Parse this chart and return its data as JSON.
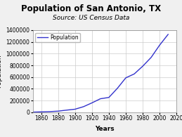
{
  "title": "Population of San Antonio, TX",
  "subtitle": "Source: US Census Data",
  "xlabel": "Years",
  "ylabel": "Population",
  "line_color": "#3333cc",
  "line_width": 1.0,
  "legend_label": "Population",
  "xlim": [
    1850,
    2020
  ],
  "ylim": [
    0,
    1400000
  ],
  "xticks": [
    1860,
    1880,
    1900,
    1920,
    1940,
    1960,
    1980,
    2000,
    2020
  ],
  "yticks": [
    0,
    200000,
    400000,
    600000,
    800000,
    1000000,
    1200000,
    1400000
  ],
  "data": {
    "years": [
      1850,
      1860,
      1870,
      1880,
      1890,
      1900,
      1910,
      1920,
      1930,
      1940,
      1950,
      1960,
      1970,
      1980,
      1990,
      2000,
      2010
    ],
    "population": [
      3488,
      8235,
      12256,
      20550,
      37673,
      53321,
      96614,
      161379,
      231542,
      253854,
      408442,
      587718,
      654153,
      785880,
      935933,
      1144646,
      1327407
    ]
  },
  "fig_background": "#f0f0f0",
  "plot_background": "#ffffff",
  "grid_color": "#cccccc",
  "title_fontsize": 8.5,
  "subtitle_fontsize": 6.5,
  "label_fontsize": 6.5,
  "tick_fontsize": 5.5,
  "legend_fontsize": 5.5
}
